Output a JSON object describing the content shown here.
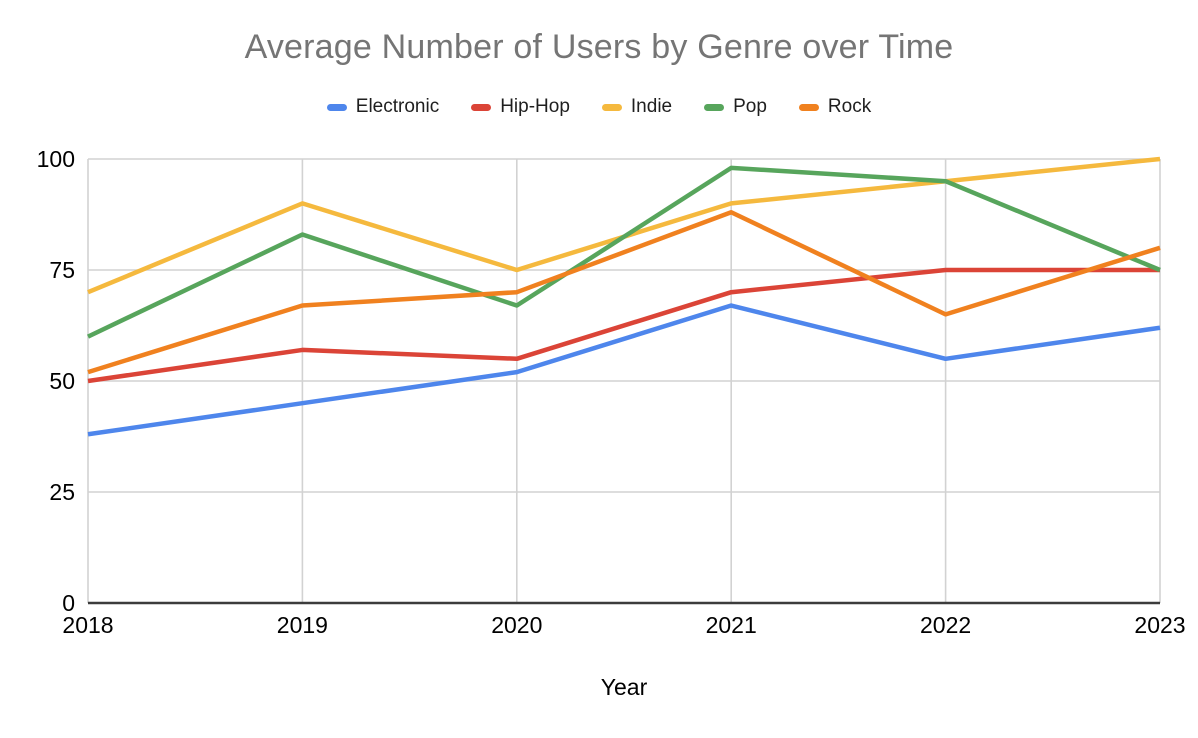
{
  "chart_data": {
    "type": "line",
    "title": "Average Number of Users by Genre over Time",
    "xlabel": "Year",
    "ylabel": "",
    "categories": [
      "2018",
      "2019",
      "2020",
      "2021",
      "2022",
      "2023"
    ],
    "series": [
      {
        "name": "Electronic",
        "color": "#4E86EC",
        "values": [
          38,
          45,
          52,
          67,
          55,
          62
        ]
      },
      {
        "name": "Hip-Hop",
        "color": "#DB4437",
        "values": [
          50,
          57,
          55,
          70,
          75,
          75
        ]
      },
      {
        "name": "Indie",
        "color": "#F5B93E",
        "values": [
          70,
          90,
          75,
          90,
          95,
          100
        ]
      },
      {
        "name": "Pop",
        "color": "#57A55C",
        "values": [
          60,
          83,
          67,
          98,
          95,
          75
        ]
      },
      {
        "name": "Rock",
        "color": "#F0811F",
        "values": [
          52,
          67,
          70,
          88,
          65,
          80
        ]
      }
    ],
    "ylim": [
      0,
      100
    ],
    "yticks": [
      0,
      25,
      50,
      75,
      100
    ],
    "legend_position": "top",
    "grid": true,
    "colors": {
      "title_text": "#757575",
      "tick_text": "#000000",
      "gridline": "#d2d2d2",
      "axis_line": "#3c3c3c",
      "background": "#ffffff"
    }
  }
}
